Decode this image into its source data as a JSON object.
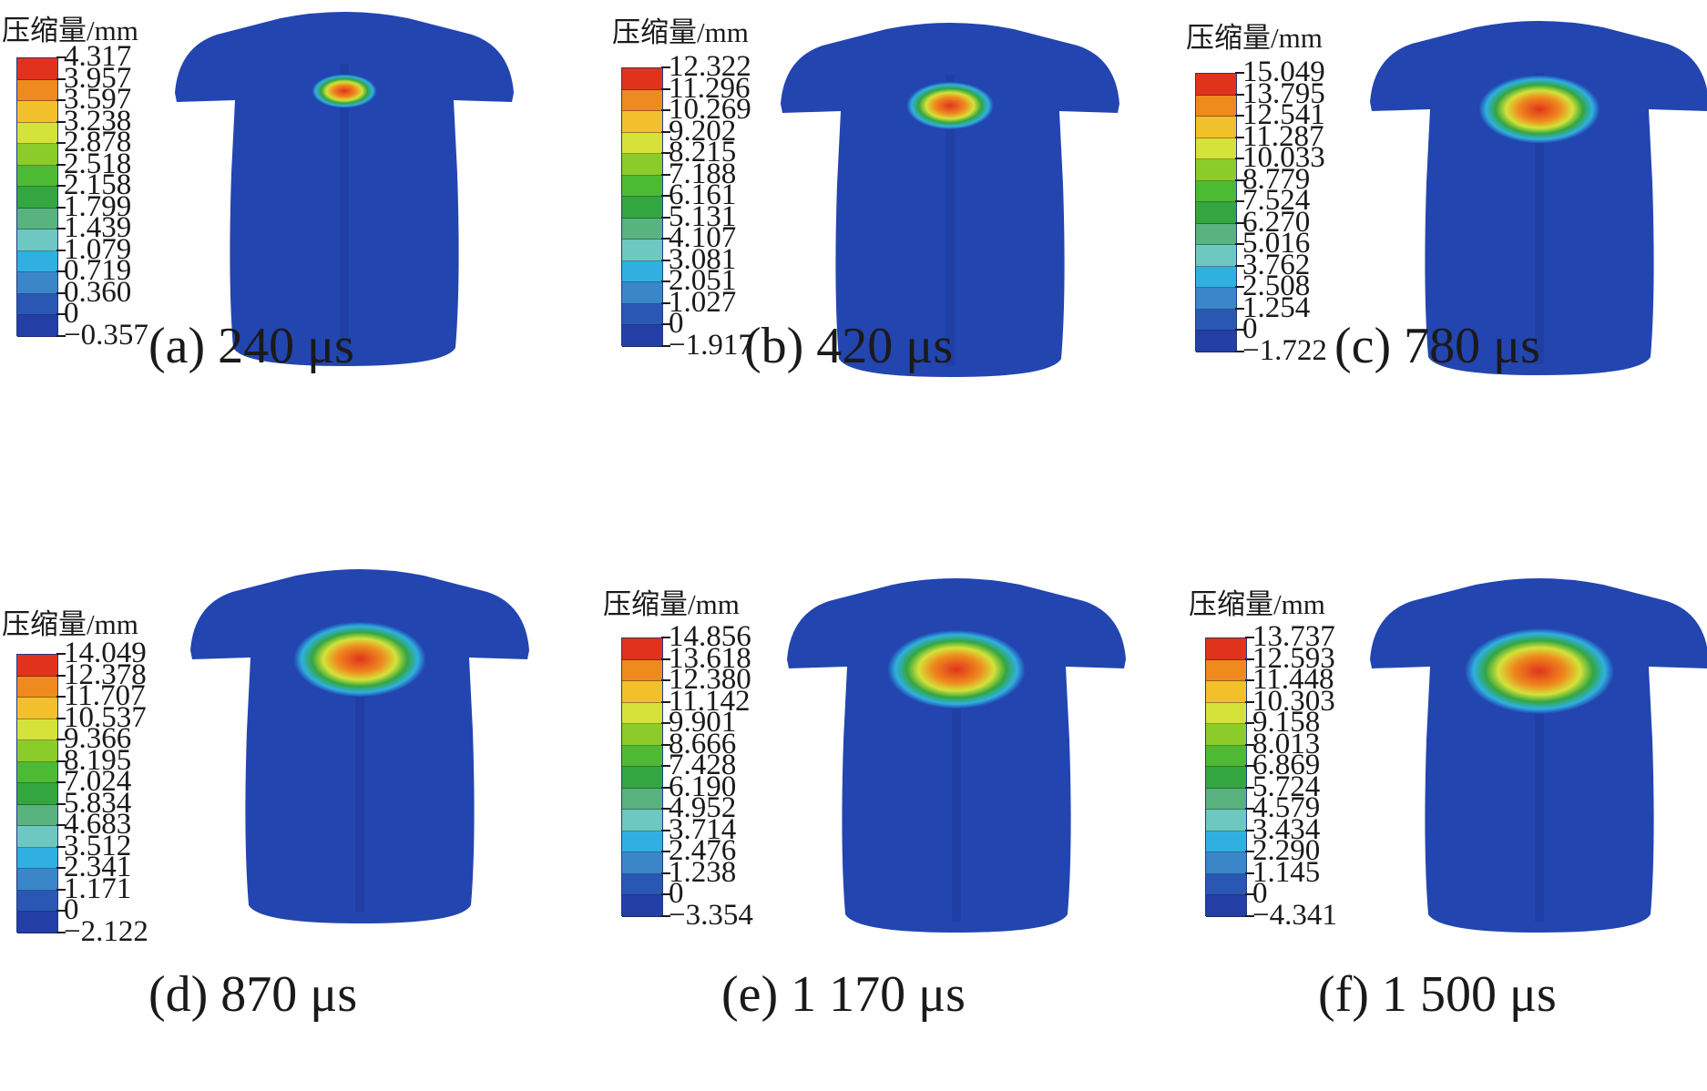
{
  "legend_title": "压缩量/mm",
  "colors": [
    "#1e3c9c",
    "#233fa5",
    "#2b57b4",
    "#3a86c8",
    "#2fb0e0",
    "#6dc8c2",
    "#58b37f",
    "#34a640",
    "#4cbb33",
    "#8ccc2a",
    "#d4e23a",
    "#f2c02a",
    "#ef8a1e",
    "#e1331c"
  ],
  "torso_color": "#2345b0",
  "panels": [
    {
      "caption": "(a) 240 μs",
      "ticks": [
        "4.317",
        "3.957",
        "3.597",
        "3.238",
        "2.878",
        "2.518",
        "2.158",
        "1.799",
        "1.439",
        "1.079",
        "0.719",
        "0.360",
        "0",
        "−0.357"
      ],
      "hotspot": 0.25
    },
    {
      "caption": "(b) 420 μs",
      "ticks": [
        "12.322",
        "11.296",
        "10.269",
        "9.202",
        "8.215",
        "7.188",
        "6.161",
        "5.131",
        "4.107",
        "3.081",
        "2.051",
        "1.027",
        "0",
        "−1.917"
      ],
      "hotspot": 0.45
    },
    {
      "caption": "(c) 780 μs",
      "ticks": [
        "15.049",
        "13.795",
        "12.541",
        "11.287",
        "10.033",
        "8.779",
        "7.524",
        "6.270",
        "5.016",
        "3.762",
        "2.508",
        "1.254",
        "0",
        "−1.722"
      ],
      "hotspot": 0.75
    },
    {
      "caption": "(d) 870 μs",
      "ticks": [
        "14.049",
        "12.378",
        "11.707",
        "10.537",
        "9.366",
        "8.195",
        "7.024",
        "5.834",
        "4.683",
        "3.512",
        "2.341",
        "1.171",
        "0",
        "−2.122"
      ],
      "hotspot": 0.85
    },
    {
      "caption": "(e) 1 170 μs",
      "ticks": [
        "14.856",
        "13.618",
        "12.380",
        "11.142",
        "9.901",
        "8.666",
        "7.428",
        "6.190",
        "4.952",
        "3.714",
        "2.476",
        "1.238",
        "0",
        "−3.354"
      ],
      "hotspot": 0.9
    },
    {
      "caption": "(f) 1 500 μs",
      "ticks": [
        "13.737",
        "12.593",
        "11.448",
        "10.303",
        "9.158",
        "8.013",
        "6.869",
        "5.724",
        "4.579",
        "3.434",
        "2.290",
        "1.145",
        "0",
        "−4.341"
      ],
      "hotspot": 1.0
    }
  ]
}
